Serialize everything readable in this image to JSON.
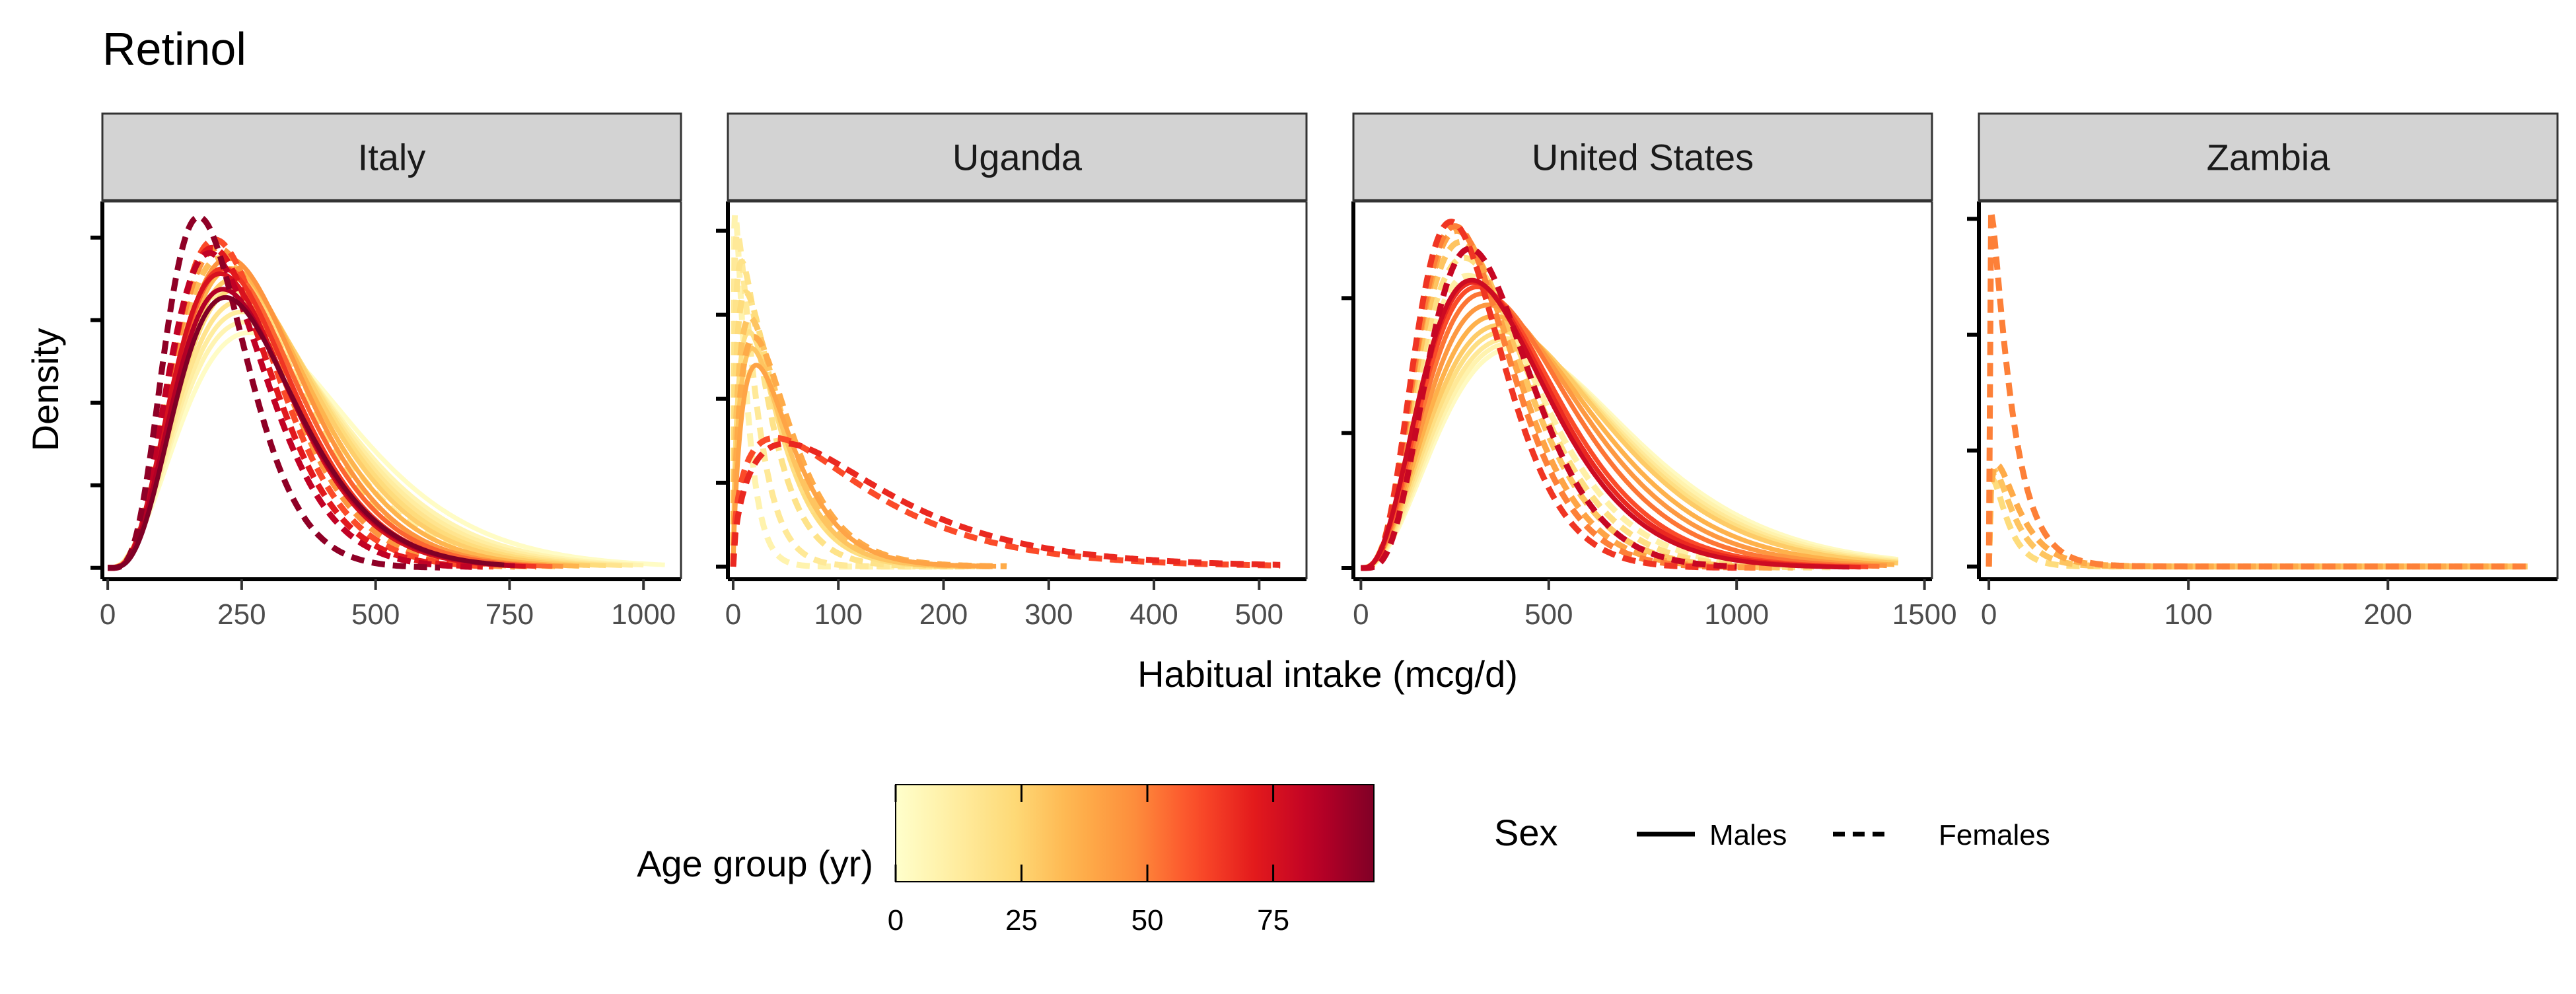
{
  "chart_data": {
    "type": "line",
    "title": "Retinol",
    "xlabel": "Habitual intake (mcg/d)",
    "ylabel": "Density",
    "grid": false,
    "facets": [
      {
        "name": "Italy",
        "xlim": [
          -10,
          1070
        ],
        "xticks": [
          0,
          250,
          500,
          750,
          1000
        ],
        "xticklabels": [
          "0",
          "250",
          "500",
          "750",
          "1000"
        ],
        "ylim": [
          -0.00011,
          0.00355
        ],
        "yticks": [
          0,
          0.0008,
          0.0016,
          0.0024,
          0.0032
        ],
        "curves": [
          {
            "age": 2,
            "sex": "Males",
            "mode": 265,
            "peak": 0.00228,
            "shape": 3.8,
            "xmax": 1040
          },
          {
            "age": 7,
            "sex": "Males",
            "mode": 255,
            "peak": 0.00238,
            "shape": 3.9,
            "xmax": 1000
          },
          {
            "age": 12,
            "sex": "Males",
            "mode": 250,
            "peak": 0.00248,
            "shape": 4.0,
            "xmax": 980
          },
          {
            "age": 17,
            "sex": "Males",
            "mode": 245,
            "peak": 0.00258,
            "shape": 4.1,
            "xmax": 960
          },
          {
            "age": 22,
            "sex": "Males",
            "mode": 240,
            "peak": 0.0027,
            "shape": 4.2,
            "xmax": 930
          },
          {
            "age": 27,
            "sex": "Males",
            "mode": 235,
            "peak": 0.0028,
            "shape": 4.3,
            "xmax": 900
          },
          {
            "age": 35,
            "sex": "Males",
            "mode": 230,
            "peak": 0.0029,
            "shape": 4.5,
            "xmax": 880
          },
          {
            "age": 45,
            "sex": "Males",
            "mode": 225,
            "peak": 0.003,
            "shape": 4.7,
            "xmax": 850
          },
          {
            "age": 55,
            "sex": "Males",
            "mode": 220,
            "peak": 0.0029,
            "shape": 4.7,
            "xmax": 830
          },
          {
            "age": 65,
            "sex": "Males",
            "mode": 215,
            "peak": 0.0029,
            "shape": 4.8,
            "xmax": 800
          },
          {
            "age": 75,
            "sex": "Males",
            "mode": 210,
            "peak": 0.00285,
            "shape": 4.8,
            "xmax": 780
          },
          {
            "age": 85,
            "sex": "Males",
            "mode": 215,
            "peak": 0.0027,
            "shape": 4.8,
            "xmax": 760
          },
          {
            "age": 95,
            "sex": "Males",
            "mode": 220,
            "peak": 0.00262,
            "shape": 4.9,
            "xmax": 740
          },
          {
            "age": 12,
            "sex": "Females",
            "mode": 230,
            "peak": 0.0027,
            "shape": 4.3,
            "xmax": 880
          },
          {
            "age": 22,
            "sex": "Females",
            "mode": 220,
            "peak": 0.0029,
            "shape": 4.6,
            "xmax": 840
          },
          {
            "age": 32,
            "sex": "Females",
            "mode": 210,
            "peak": 0.003,
            "shape": 4.8,
            "xmax": 800
          },
          {
            "age": 45,
            "sex": "Females",
            "mode": 205,
            "peak": 0.0031,
            "shape": 5.0,
            "xmax": 760
          },
          {
            "age": 60,
            "sex": "Females",
            "mode": 200,
            "peak": 0.00318,
            "shape": 5.2,
            "xmax": 720
          },
          {
            "age": 72,
            "sex": "Females",
            "mode": 195,
            "peak": 0.0031,
            "shape": 5.3,
            "xmax": 700
          },
          {
            "age": 82,
            "sex": "Females",
            "mode": 190,
            "peak": 0.00305,
            "shape": 5.4,
            "xmax": 680
          },
          {
            "age": 92,
            "sex": "Females",
            "mode": 170,
            "peak": 0.0034,
            "shape": 6.0,
            "xmax": 620
          }
        ]
      },
      {
        "name": "Uganda",
        "xlim": [
          -5,
          545
        ],
        "xticks": [
          0,
          100,
          200,
          300,
          400,
          500
        ],
        "xticklabels": [
          "0",
          "100",
          "200",
          "300",
          "400",
          "500"
        ],
        "ylim": [
          -0.00045,
          0.01305
        ],
        "yticks": [
          0,
          0.003,
          0.006,
          0.009,
          0.012
        ],
        "curves": [
          {
            "age": 8,
            "sex": "Females",
            "mode": 2,
            "peak": 0.0126,
            "shape": 1.2,
            "xmax": 200
          },
          {
            "age": 14,
            "sex": "Females",
            "mode": 4,
            "peak": 0.0119,
            "shape": 1.25,
            "xmax": 210
          },
          {
            "age": 18,
            "sex": "Females",
            "mode": 8,
            "peak": 0.0109,
            "shape": 1.35,
            "xmax": 220
          },
          {
            "age": 22,
            "sex": "Females",
            "mode": 12,
            "peak": 0.0098,
            "shape": 1.45,
            "xmax": 230
          },
          {
            "age": 30,
            "sex": "Females",
            "mode": 16,
            "peak": 0.0089,
            "shape": 1.6,
            "xmax": 250
          },
          {
            "age": 38,
            "sex": "Females",
            "mode": 20,
            "peak": 0.0082,
            "shape": 1.7,
            "xmax": 260
          },
          {
            "age": 20,
            "sex": "Males",
            "mode": 15,
            "peak": 0.0084,
            "shape": 1.6,
            "xmax": 230
          },
          {
            "age": 30,
            "sex": "Males",
            "mode": 18,
            "peak": 0.0078,
            "shape": 1.7,
            "xmax": 240
          },
          {
            "age": 40,
            "sex": "Males",
            "mode": 22,
            "peak": 0.0072,
            "shape": 1.8,
            "xmax": 250
          },
          {
            "age": 60,
            "sex": "Females",
            "mode": 40,
            "peak": 0.0046,
            "shape": 1.5,
            "xmax": 520
          },
          {
            "age": 68,
            "sex": "Females",
            "mode": 50,
            "peak": 0.0044,
            "shape": 1.6,
            "xmax": 520
          }
        ]
      },
      {
        "name": "United States",
        "xlim": [
          -20,
          1520
        ],
        "xticks": [
          0,
          500,
          1000,
          1500
        ],
        "xticklabels": [
          "0",
          "500",
          "1000",
          "1500"
        ],
        "ylim": [
          -5e-05,
          0.00163
        ],
        "yticks": [
          0,
          0.0006,
          0.0012
        ],
        "curves": [
          {
            "age": 3,
            "sex": "Males",
            "mode": 410,
            "peak": 0.00098,
            "shape": 3.6,
            "xmax": 1430
          },
          {
            "age": 8,
            "sex": "Males",
            "mode": 400,
            "peak": 0.001,
            "shape": 3.6,
            "xmax": 1430
          },
          {
            "age": 14,
            "sex": "Males",
            "mode": 390,
            "peak": 0.00102,
            "shape": 3.6,
            "xmax": 1430
          },
          {
            "age": 20,
            "sex": "Males",
            "mode": 380,
            "peak": 0.00105,
            "shape": 3.6,
            "xmax": 1430
          },
          {
            "age": 28,
            "sex": "Males",
            "mode": 370,
            "peak": 0.00108,
            "shape": 3.6,
            "xmax": 1430
          },
          {
            "age": 36,
            "sex": "Males",
            "mode": 355,
            "peak": 0.00112,
            "shape": 3.7,
            "xmax": 1420
          },
          {
            "age": 44,
            "sex": "Males",
            "mode": 340,
            "peak": 0.00117,
            "shape": 3.8,
            "xmax": 1400
          },
          {
            "age": 52,
            "sex": "Males",
            "mode": 325,
            "peak": 0.00122,
            "shape": 3.9,
            "xmax": 1380
          },
          {
            "age": 60,
            "sex": "Males",
            "mode": 310,
            "peak": 0.00125,
            "shape": 4.0,
            "xmax": 1350
          },
          {
            "age": 68,
            "sex": "Males",
            "mode": 300,
            "peak": 0.00127,
            "shape": 4.0,
            "xmax": 1330
          },
          {
            "age": 78,
            "sex": "Males",
            "mode": 295,
            "peak": 0.00128,
            "shape": 4.1,
            "xmax": 1300
          },
          {
            "age": 10,
            "sex": "Females",
            "mode": 285,
            "peak": 0.0013,
            "shape": 4.2,
            "xmax": 1250
          },
          {
            "age": 20,
            "sex": "Females",
            "mode": 275,
            "peak": 0.00138,
            "shape": 4.4,
            "xmax": 1200
          },
          {
            "age": 30,
            "sex": "Females",
            "mode": 265,
            "peak": 0.00145,
            "shape": 4.6,
            "xmax": 1150
          },
          {
            "age": 40,
            "sex": "Females",
            "mode": 255,
            "peak": 0.0015,
            "shape": 4.8,
            "xmax": 1100
          },
          {
            "age": 50,
            "sex": "Females",
            "mode": 250,
            "peak": 0.00152,
            "shape": 5.0,
            "xmax": 1050
          },
          {
            "age": 65,
            "sex": "Females",
            "mode": 240,
            "peak": 0.00154,
            "shape": 5.2,
            "xmax": 1000
          },
          {
            "age": 80,
            "sex": "Females",
            "mode": 290,
            "peak": 0.00142,
            "shape": 5.5,
            "xmax": 1000
          }
        ]
      },
      {
        "name": "Zambia",
        "xlim": [
          -5,
          285
        ],
        "xticks": [
          0,
          100,
          200
        ],
        "xticklabels": [
          "0",
          "100",
          "200"
        ],
        "ylim": [
          -0.0011,
          0.0315
        ],
        "yticks": [
          0,
          0.01,
          0.02,
          0.03
        ],
        "curves": [
          {
            "age": 22,
            "sex": "Females",
            "mode": 2,
            "peak": 0.0075,
            "shape": 1.3,
            "xmax": 270
          },
          {
            "age": 30,
            "sex": "Females",
            "mode": 3,
            "peak": 0.0082,
            "shape": 1.35,
            "xmax": 270
          },
          {
            "age": 38,
            "sex": "Females",
            "mode": 4,
            "peak": 0.0088,
            "shape": 1.4,
            "xmax": 260
          },
          {
            "age": 50,
            "sex": "Females",
            "mode": 1,
            "peak": 0.0307,
            "shape": 1.1,
            "xmax": 270
          }
        ]
      }
    ],
    "legend": {
      "placement": "bottom",
      "colorbar": {
        "title": "Age group (yr)",
        "range": [
          0,
          95
        ],
        "ticks": [
          0,
          25,
          50,
          75
        ],
        "ticklabels": [
          "0",
          "25",
          "50",
          "75"
        ],
        "palette": [
          "#ffffcc",
          "#ffeda0",
          "#fed976",
          "#feb24c",
          "#fd8d3c",
          "#fc4e2a",
          "#e31a1c",
          "#bd0026",
          "#800026"
        ]
      },
      "linetype": {
        "title": "Sex",
        "entries": [
          {
            "label": "Males",
            "dash": "solid"
          },
          {
            "label": "Females",
            "dash": "dashed"
          }
        ]
      }
    },
    "colors": {
      "strip_fill": "#d3d3d3",
      "axis": "#000000",
      "tick_label": "#4d4d4d",
      "text": "#000000"
    }
  }
}
